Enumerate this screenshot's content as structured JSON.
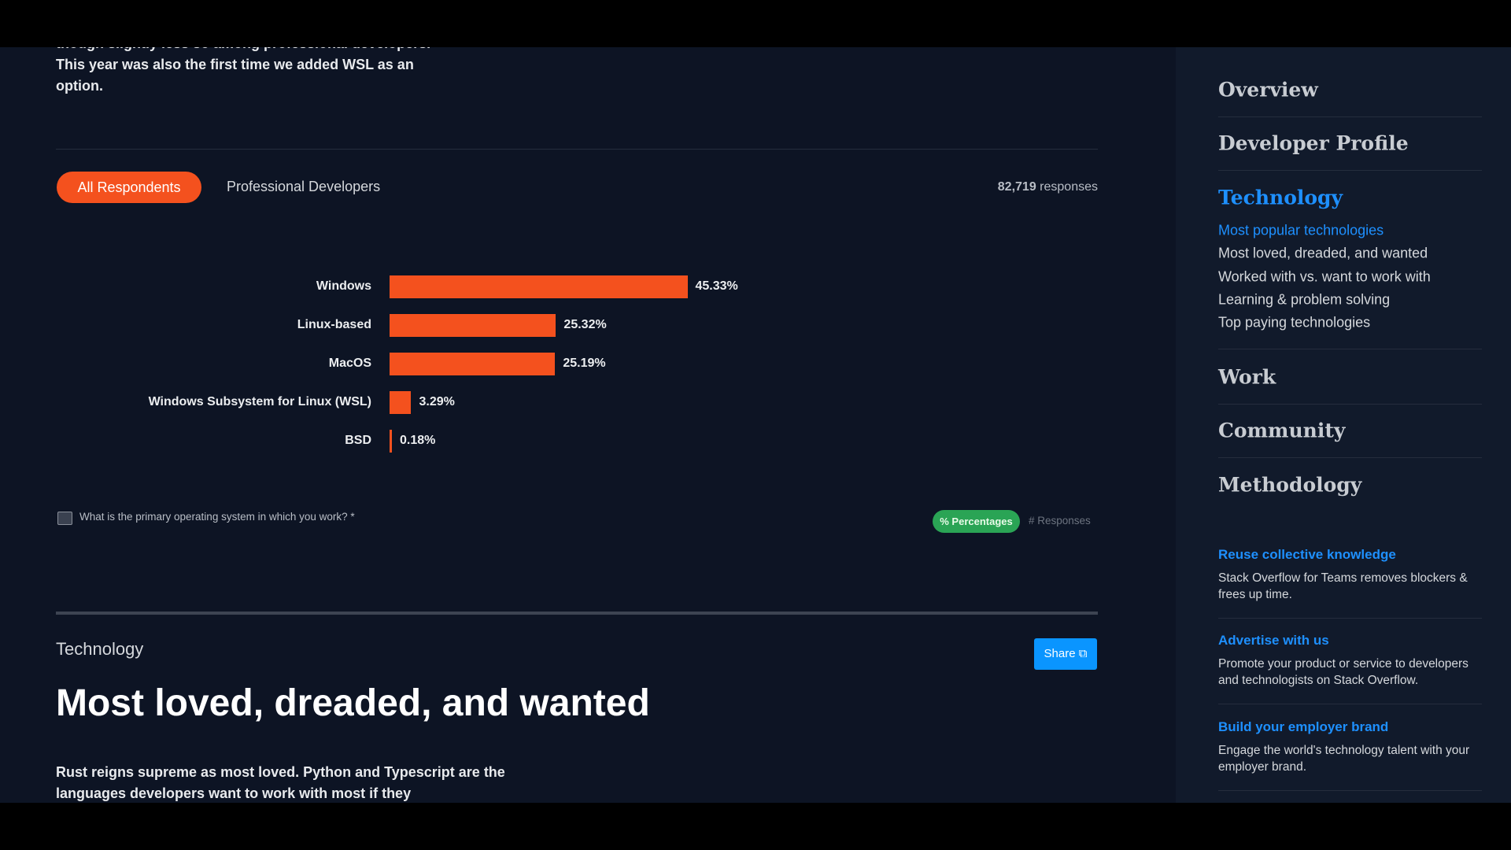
{
  "intro": {
    "text": "though slightly less so among professional developers. This year was also the first time we added WSL as an option."
  },
  "tabs": [
    "All Respondents",
    "Professional Developers"
  ],
  "responses": {
    "count": "82,719",
    "label": "responses"
  },
  "chart_data": {
    "type": "bar",
    "orientation": "horizontal",
    "categories": [
      "Windows",
      "Linux-based",
      "MacOS",
      "Windows Subsystem for Linux (WSL)",
      "BSD"
    ],
    "values": [
      45.33,
      25.32,
      25.19,
      3.29,
      0.18
    ],
    "value_labels": [
      "45.33%",
      "25.32%",
      "25.19%",
      "3.29%",
      "0.18%"
    ],
    "color": "#f4511e"
  },
  "question": "What is the primary operating system in which you work? *",
  "toggle": [
    "% Percentages",
    "# Responses"
  ],
  "section": {
    "kicker": "Technology",
    "share": "Share",
    "heading": "Most loved, dreaded, and wanted",
    "text": "Rust reigns supreme as most loved. Python and Typescript are the languages developers want to work with most if they"
  },
  "sidebar": {
    "nav": [
      "Overview",
      "Developer Profile",
      "Technology",
      "Work",
      "Community",
      "Methodology"
    ],
    "subnav": [
      "Most popular technologies",
      "Most loved, dreaded, and wanted",
      "Worked with vs. want to work with",
      "Learning & problem solving",
      "Top paying technologies"
    ],
    "promos": [
      {
        "title": "Reuse collective knowledge",
        "text": "Stack Overflow for Teams removes blockers & frees up time."
      },
      {
        "title": "Advertise with us",
        "text": "Promote your product or service to developers and technologists on Stack Overflow."
      },
      {
        "title": "Build your employer brand",
        "text": "Engage the world's technology talent with your employer brand."
      }
    ]
  }
}
